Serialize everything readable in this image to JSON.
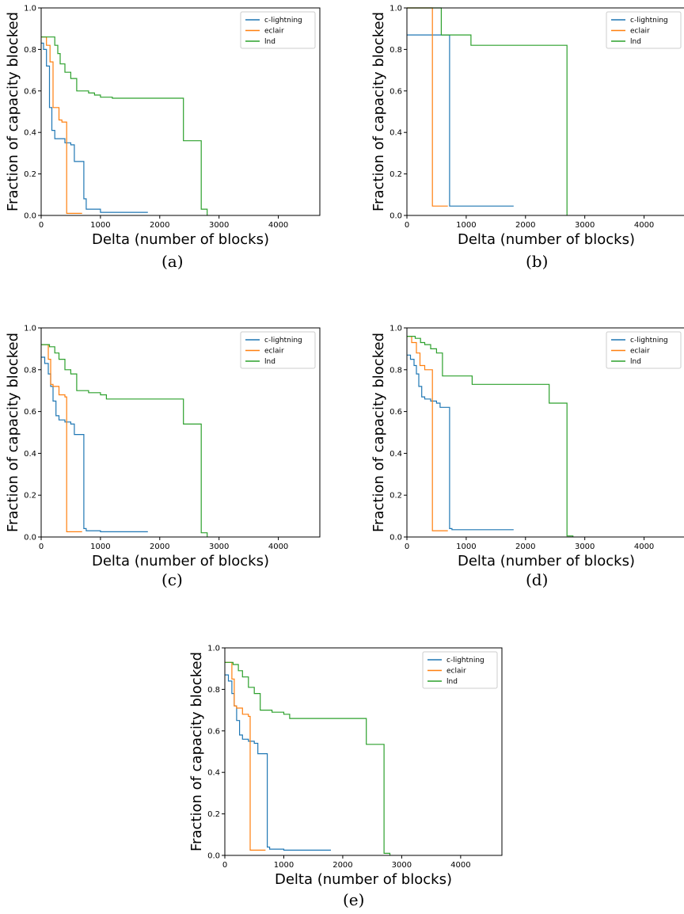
{
  "figure": {
    "captions": [
      "(a)",
      "(b)",
      "(c)",
      "(d)",
      "(e)"
    ]
  },
  "colors": {
    "c-lightning": "#1f77b4",
    "eclair": "#ff7f0e",
    "lnd": "#2ca02c"
  },
  "chart_data": [
    {
      "type": "line",
      "step": true,
      "panel": "(a)",
      "xlabel": "Delta (number of blocks)",
      "ylabel": "Fraction of capacity blocked",
      "xlim": [
        0,
        4700
      ],
      "ylim": [
        0,
        1.0
      ],
      "xticks": [
        "0",
        "1000",
        "2000",
        "3000",
        "4000"
      ],
      "yticks": [
        "0.0",
        "0.2",
        "0.4",
        "0.6",
        "0.8",
        "1.0"
      ],
      "legend": "top-right",
      "series": [
        {
          "name": "c-lightning",
          "x": [
            0,
            40,
            90,
            140,
            180,
            230,
            300,
            400,
            500,
            560,
            720,
            760,
            1000,
            1800
          ],
          "y": [
            0.83,
            0.8,
            0.72,
            0.52,
            0.41,
            0.37,
            0.37,
            0.35,
            0.34,
            0.26,
            0.08,
            0.03,
            0.015,
            0.015
          ]
        },
        {
          "name": "eclair",
          "x": [
            0,
            90,
            150,
            200,
            250,
            300,
            350,
            420,
            430,
            690
          ],
          "y": [
            0.86,
            0.82,
            0.74,
            0.52,
            0.52,
            0.46,
            0.45,
            0.45,
            0.01,
            0.01
          ]
        },
        {
          "name": "lnd",
          "x": [
            0,
            140,
            230,
            280,
            320,
            400,
            500,
            600,
            800,
            900,
            1000,
            1100,
            1200,
            2400,
            2700,
            2800
          ],
          "y": [
            0.86,
            0.86,
            0.82,
            0.78,
            0.73,
            0.69,
            0.66,
            0.6,
            0.59,
            0.58,
            0.57,
            0.57,
            0.565,
            0.36,
            0.03,
            0.0
          ]
        }
      ]
    },
    {
      "type": "line",
      "step": true,
      "panel": "(b)",
      "xlabel": "Delta (number of blocks)",
      "ylabel": "Fraction of capacity blocked",
      "xlim": [
        0,
        4700
      ],
      "ylim": [
        0,
        1.0
      ],
      "xticks": [
        "0",
        "1000",
        "2000",
        "3000",
        "4000"
      ],
      "yticks": [
        "0.0",
        "0.2",
        "0.4",
        "0.6",
        "0.8",
        "1.0"
      ],
      "legend": "top-right",
      "series": [
        {
          "name": "c-lightning",
          "x": [
            0,
            720,
            1800
          ],
          "y": [
            0.87,
            0.045,
            0.045
          ]
        },
        {
          "name": "eclair",
          "x": [
            0,
            430,
            690
          ],
          "y": [
            1.0,
            0.045,
            0.045
          ]
        },
        {
          "name": "lnd",
          "x": [
            0,
            580,
            1080,
            2700
          ],
          "y": [
            1.0,
            0.87,
            0.82,
            0.0
          ]
        }
      ]
    },
    {
      "type": "line",
      "step": true,
      "panel": "(c)",
      "xlabel": "Delta (number of blocks)",
      "ylabel": "Fraction of capacity blocked",
      "xlim": [
        0,
        4700
      ],
      "ylim": [
        0,
        1.0
      ],
      "xticks": [
        "0",
        "1000",
        "2000",
        "3000",
        "4000"
      ],
      "yticks": [
        "0.0",
        "0.2",
        "0.4",
        "0.6",
        "0.8",
        "1.0"
      ],
      "legend": "top-right",
      "series": [
        {
          "name": "c-lightning",
          "x": [
            0,
            60,
            120,
            160,
            200,
            250,
            300,
            400,
            500,
            560,
            720,
            760,
            1000,
            1800
          ],
          "y": [
            0.86,
            0.83,
            0.78,
            0.72,
            0.65,
            0.58,
            0.56,
            0.55,
            0.54,
            0.49,
            0.04,
            0.03,
            0.025,
            0.025
          ]
        },
        {
          "name": "eclair",
          "x": [
            0,
            120,
            160,
            200,
            300,
            400,
            430,
            690
          ],
          "y": [
            0.92,
            0.85,
            0.73,
            0.72,
            0.68,
            0.67,
            0.025,
            0.025
          ]
        },
        {
          "name": "lnd",
          "x": [
            0,
            140,
            230,
            300,
            400,
            500,
            600,
            800,
            1000,
            1100,
            2400,
            2700,
            2800
          ],
          "y": [
            0.92,
            0.91,
            0.88,
            0.85,
            0.8,
            0.78,
            0.7,
            0.69,
            0.68,
            0.66,
            0.54,
            0.02,
            0.0
          ]
        }
      ]
    },
    {
      "type": "line",
      "step": true,
      "panel": "(d)",
      "xlabel": "Delta (number of blocks)",
      "ylabel": "Fraction of capacity blocked",
      "xlim": [
        0,
        4700
      ],
      "ylim": [
        0,
        1.0
      ],
      "xticks": [
        "0",
        "1000",
        "2000",
        "3000",
        "4000"
      ],
      "yticks": [
        "0.0",
        "0.2",
        "0.4",
        "0.6",
        "0.8",
        "1.0"
      ],
      "legend": "top-right",
      "series": [
        {
          "name": "c-lightning",
          "x": [
            0,
            60,
            120,
            160,
            200,
            250,
            300,
            400,
            500,
            560,
            720,
            760,
            1000,
            1800
          ],
          "y": [
            0.87,
            0.85,
            0.82,
            0.78,
            0.72,
            0.67,
            0.66,
            0.65,
            0.64,
            0.62,
            0.04,
            0.035,
            0.035,
            0.035
          ]
        },
        {
          "name": "eclair",
          "x": [
            0,
            80,
            160,
            220,
            300,
            430,
            690
          ],
          "y": [
            0.96,
            0.93,
            0.88,
            0.82,
            0.8,
            0.03,
            0.03
          ]
        },
        {
          "name": "lnd",
          "x": [
            0,
            140,
            230,
            300,
            400,
            500,
            600,
            1100,
            2400,
            2700,
            2800
          ],
          "y": [
            0.96,
            0.95,
            0.93,
            0.92,
            0.9,
            0.88,
            0.77,
            0.73,
            0.64,
            0.005,
            0.0
          ]
        }
      ]
    },
    {
      "type": "line",
      "step": true,
      "panel": "(e)",
      "xlabel": "Delta (number of blocks)",
      "ylabel": "Fraction of capacity blocked",
      "xlim": [
        0,
        4700
      ],
      "ylim": [
        0,
        1.0
      ],
      "xticks": [
        "0",
        "1000",
        "2000",
        "3000",
        "4000"
      ],
      "yticks": [
        "0.0",
        "0.2",
        "0.4",
        "0.6",
        "0.8",
        "1.0"
      ],
      "legend": "top-right",
      "series": [
        {
          "name": "c-lightning",
          "x": [
            0,
            60,
            120,
            160,
            200,
            250,
            300,
            400,
            500,
            560,
            720,
            760,
            1000,
            1800
          ],
          "y": [
            0.87,
            0.84,
            0.78,
            0.72,
            0.65,
            0.58,
            0.56,
            0.55,
            0.54,
            0.49,
            0.04,
            0.03,
            0.025,
            0.025
          ]
        },
        {
          "name": "eclair",
          "x": [
            0,
            120,
            160,
            200,
            300,
            400,
            430,
            690
          ],
          "y": [
            0.93,
            0.85,
            0.72,
            0.71,
            0.68,
            0.67,
            0.025,
            0.025
          ]
        },
        {
          "name": "lnd",
          "x": [
            0,
            140,
            230,
            300,
            400,
            500,
            600,
            800,
            1000,
            1100,
            2400,
            2700,
            2800
          ],
          "y": [
            0.93,
            0.92,
            0.89,
            0.86,
            0.81,
            0.78,
            0.7,
            0.69,
            0.68,
            0.66,
            0.535,
            0.01,
            0.0
          ]
        }
      ]
    }
  ]
}
